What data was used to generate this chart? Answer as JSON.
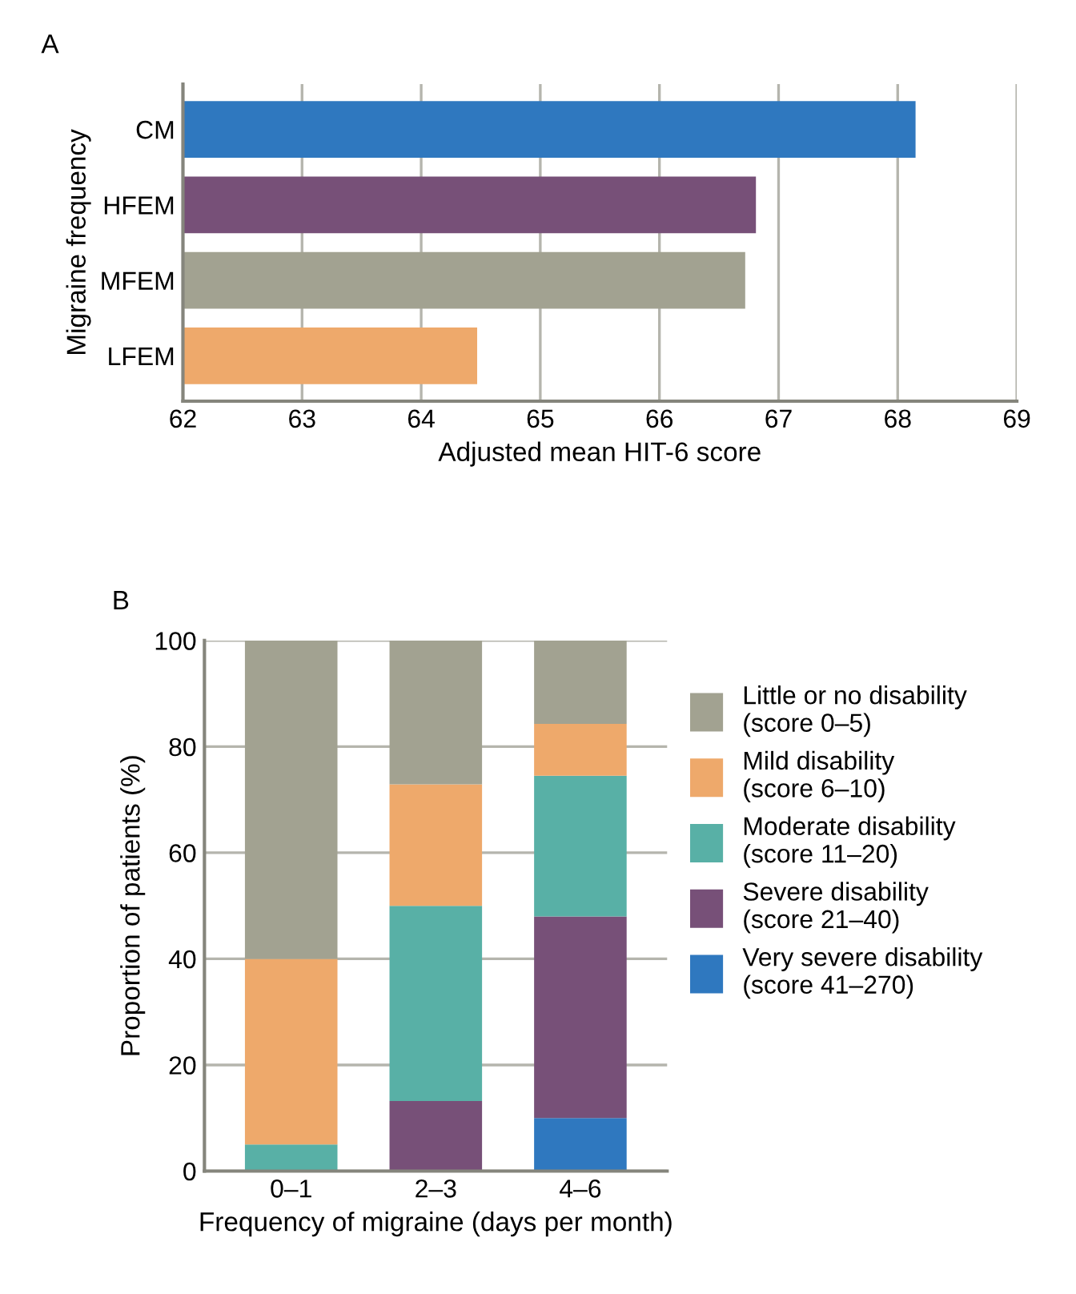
{
  "chart_data": [
    {
      "type": "bar",
      "title": "A",
      "orientation": "horizontal",
      "categories": [
        "CM",
        "HFEM",
        "MFEM",
        "LFEM"
      ],
      "values": [
        68.15,
        66.81,
        66.72,
        64.47
      ],
      "colors": [
        "#2f78bf",
        "#775078",
        "#a2a291",
        "#eea96b"
      ],
      "xlim": [
        62,
        69
      ],
      "xticks": [
        62,
        63,
        64,
        65,
        66,
        67,
        68,
        69
      ],
      "xlabel": "Adjusted mean HIT-6 score",
      "ylabel": "Migraine frequency",
      "grid": "x"
    },
    {
      "type": "bar",
      "title": "B",
      "stacked": true,
      "categories": [
        "0–1",
        "2–3",
        "4–6"
      ],
      "ylim": [
        0,
        100
      ],
      "yticks": [
        0,
        20,
        40,
        60,
        80,
        100
      ],
      "xlabel": "Frequency of migraine (days per month)",
      "ylabel": "Proportion of patients (%)",
      "grid": "y",
      "legend": "right",
      "series": [
        {
          "name": "Very severe disability\n(score 41–270)",
          "color": "#2f78bf",
          "values": [
            0,
            0,
            10
          ]
        },
        {
          "name": "Severe disability\n(score 21–40)",
          "color": "#775078",
          "values": [
            0,
            13.2,
            38
          ]
        },
        {
          "name": "Moderate disability\n(score 11–20)",
          "color": "#58b0a6",
          "values": [
            5,
            36.8,
            26.5
          ]
        },
        {
          "name": "Mild disability\n(score 6–10)",
          "color": "#eea96b",
          "values": [
            35,
            22.9,
            9.8
          ]
        },
        {
          "name": "Little or no disability\n(score 0–5)",
          "color": "#a2a291",
          "values": [
            60,
            27.1,
            15.7
          ]
        }
      ]
    }
  ]
}
